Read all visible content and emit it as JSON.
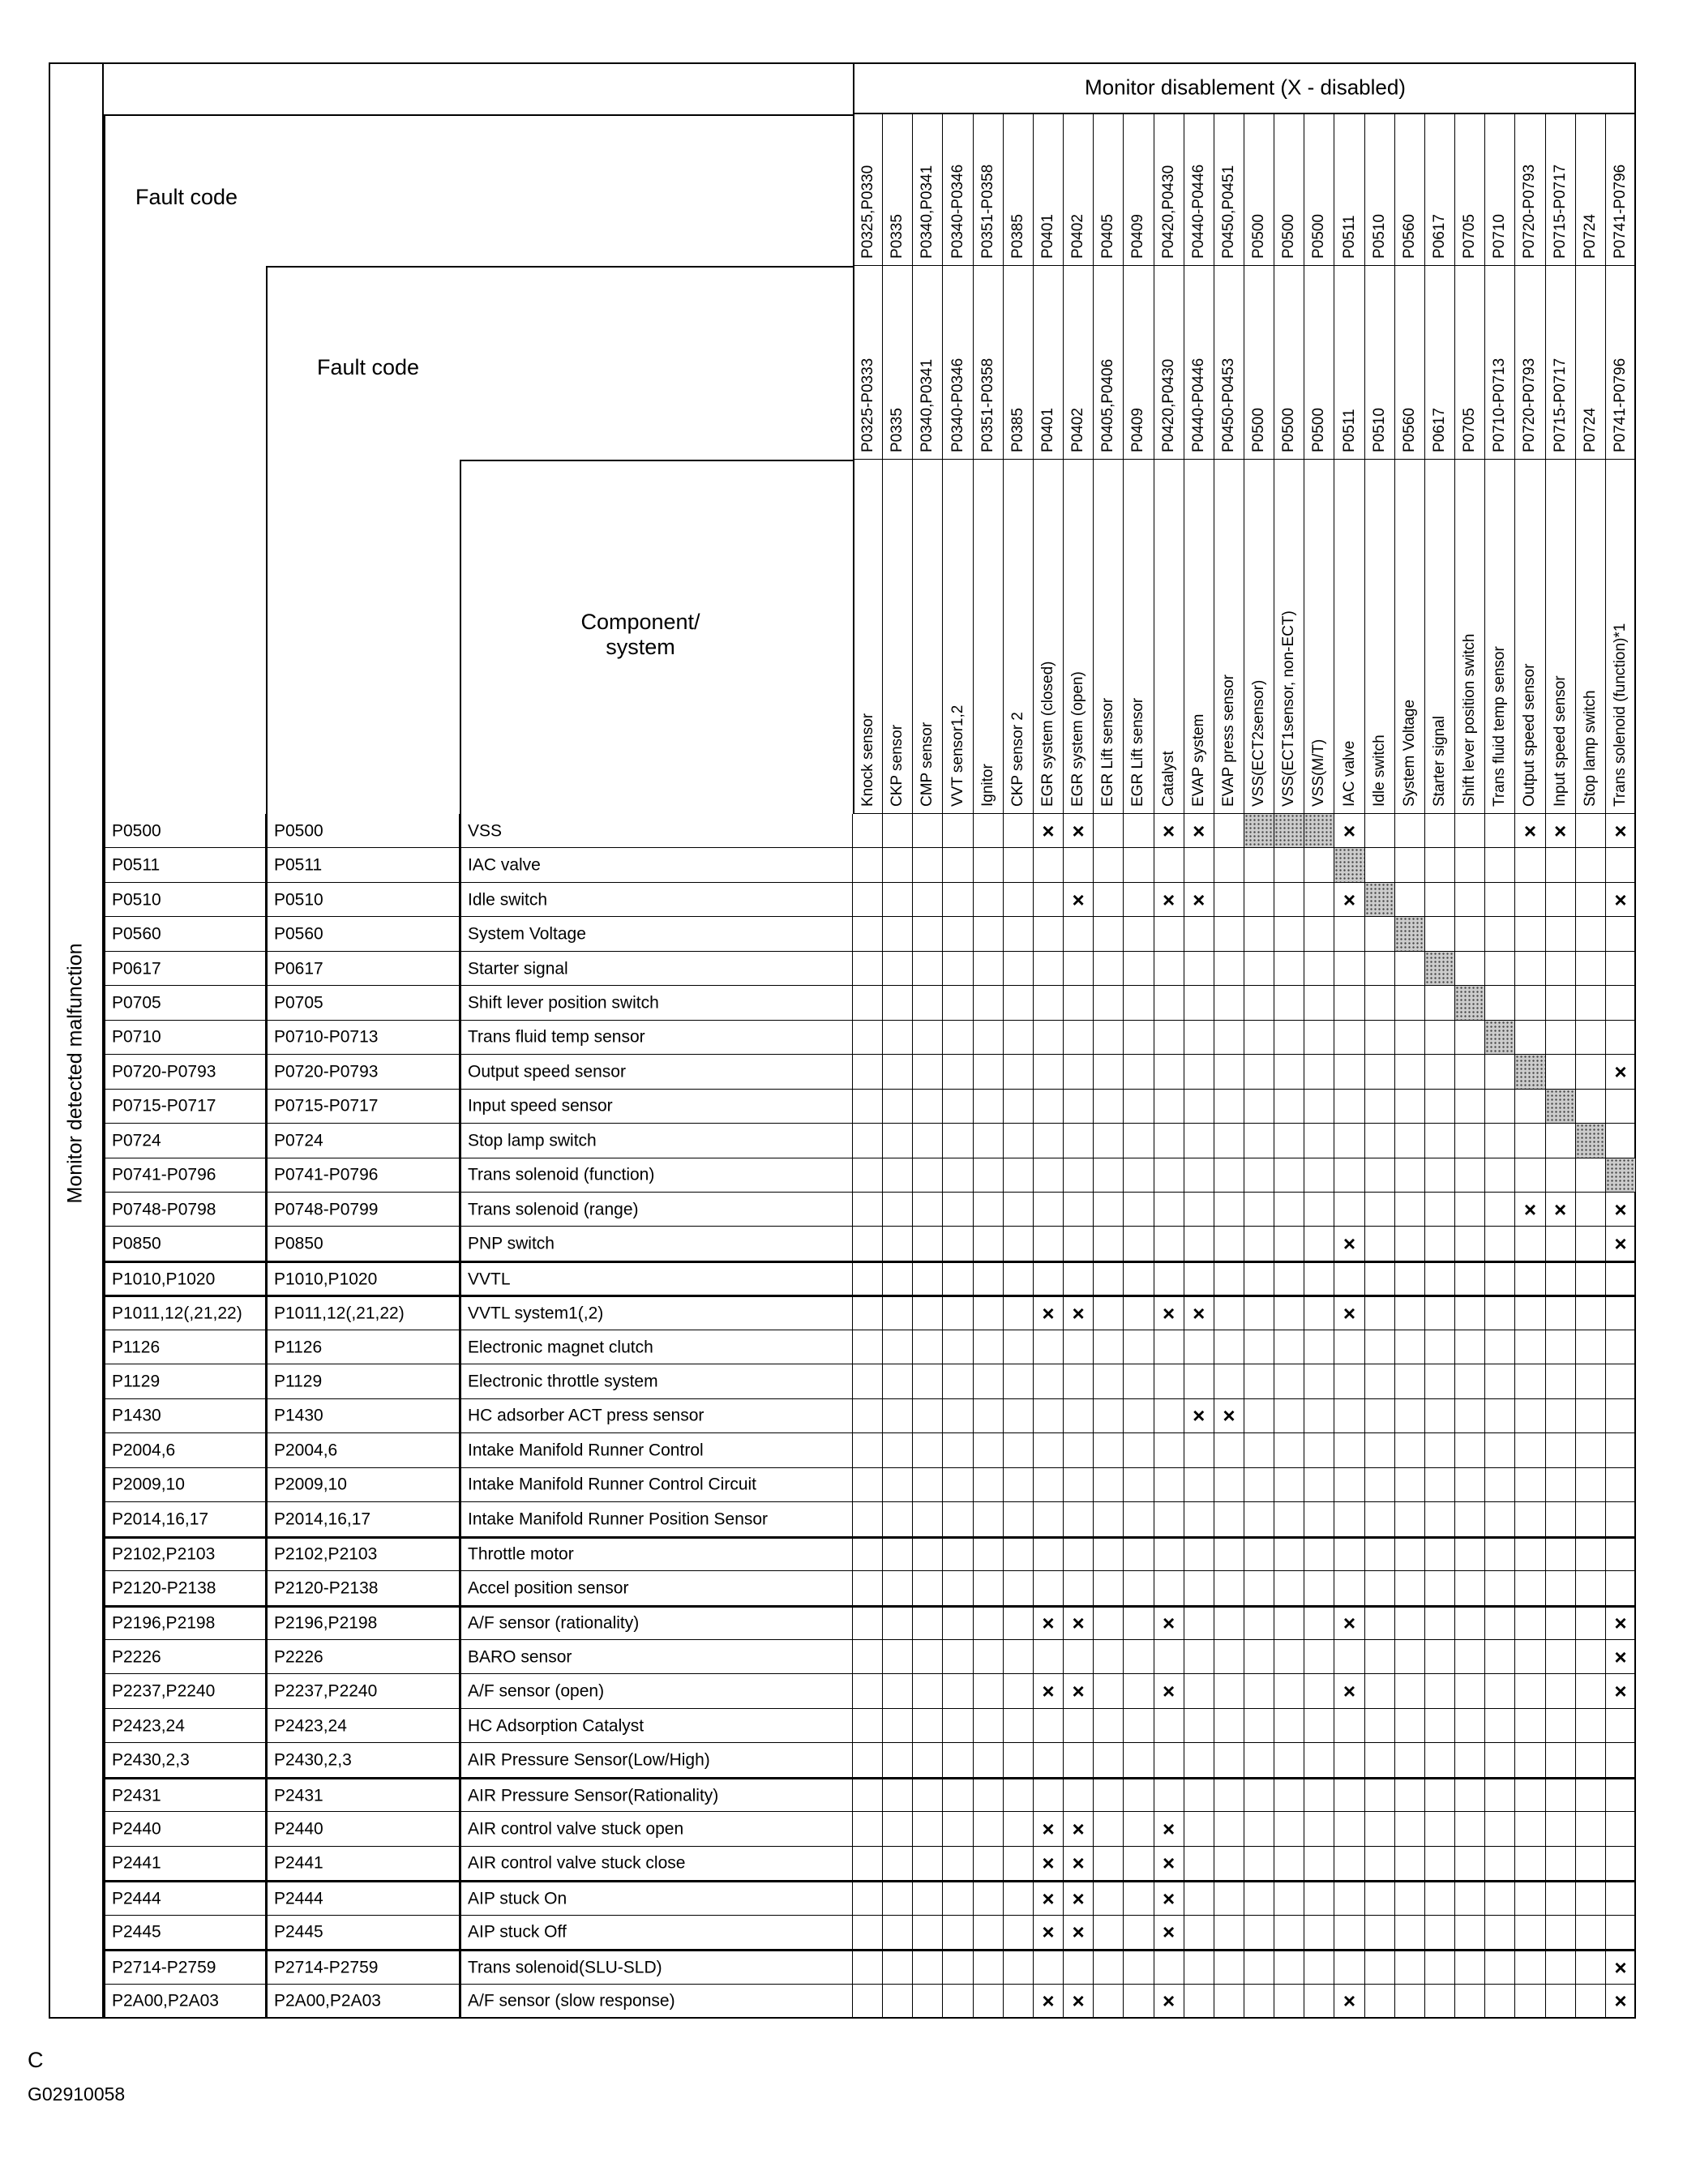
{
  "header": {
    "monitor_disablement": "Monitor disablement (X - disabled)",
    "fault_code_1": "Fault code",
    "fault_code_2": "Fault code",
    "component_system": "Component/\nsystem",
    "row_axis_label": "Monitor detected malfunction"
  },
  "columns": [
    {
      "code1": "P0325,P0330",
      "code2": "P0325-P0333",
      "component": "Knock sensor"
    },
    {
      "code1": "P0335",
      "code2": "P0335",
      "component": "CKP sensor"
    },
    {
      "code1": "P0340,P0341",
      "code2": "P0340,P0341",
      "component": "CMP sensor"
    },
    {
      "code1": "P0340-P0346",
      "code2": "P0340-P0346",
      "component": "VVT sensor1,2"
    },
    {
      "code1": "P0351-P0358",
      "code2": "P0351-P0358",
      "component": "Ignitor"
    },
    {
      "code1": "P0385",
      "code2": "P0385",
      "component": "CKP sensor 2"
    },
    {
      "code1": "P0401",
      "code2": "P0401",
      "component": "EGR system (closed)"
    },
    {
      "code1": "P0402",
      "code2": "P0402",
      "component": "EGR system (open)"
    },
    {
      "code1": "P0405",
      "code2": "P0405,P0406",
      "component": "EGR Lift sensor"
    },
    {
      "code1": "P0409",
      "code2": "P0409",
      "component": "EGR Lift sensor"
    },
    {
      "code1": "P0420,P0430",
      "code2": "P0420,P0430",
      "component": "Catalyst"
    },
    {
      "code1": "P0440-P0446",
      "code2": "P0440-P0446",
      "component": "EVAP system"
    },
    {
      "code1": "P0450,P0451",
      "code2": "P0450-P0453",
      "component": "EVAP press sensor"
    },
    {
      "code1": "P0500",
      "code2": "P0500",
      "component": "VSS(ECT2sensor)"
    },
    {
      "code1": "P0500",
      "code2": "P0500",
      "component": "VSS(ECT1sensor, non-ECT)"
    },
    {
      "code1": "P0500",
      "code2": "P0500",
      "component": "VSS(M/T)"
    },
    {
      "code1": "P0511",
      "code2": "P0511",
      "component": "IAC valve"
    },
    {
      "code1": "P0510",
      "code2": "P0510",
      "component": "Idle switch"
    },
    {
      "code1": "P0560",
      "code2": "P0560",
      "component": "System Voltage"
    },
    {
      "code1": "P0617",
      "code2": "P0617",
      "component": "Starter signal"
    },
    {
      "code1": "P0705",
      "code2": "P0705",
      "component": "Shift lever position switch"
    },
    {
      "code1": "P0710",
      "code2": "P0710-P0713",
      "component": "Trans fluid temp sensor"
    },
    {
      "code1": "P0720-P0793",
      "code2": "P0720-P0793",
      "component": "Output speed sensor"
    },
    {
      "code1": "P0715-P0717",
      "code2": "P0715-P0717",
      "component": "Input speed sensor"
    },
    {
      "code1": "P0724",
      "code2": "P0724",
      "component": "Stop lamp switch"
    },
    {
      "code1": "P0741-P0796",
      "code2": "P0741-P0796",
      "component": "Trans solenoid (function)*1"
    }
  ],
  "mark_symbol": "×",
  "rows": [
    {
      "code1": "P0500",
      "code2": "P0500",
      "component": "VSS",
      "x": [
        7,
        8,
        11,
        12,
        17,
        23,
        24,
        26
      ],
      "shaded": [
        14,
        15,
        16
      ]
    },
    {
      "code1": "P0511",
      "code2": "P0511",
      "component": "IAC valve",
      "x": [],
      "shaded": [
        17
      ]
    },
    {
      "code1": "P0510",
      "code2": "P0510",
      "component": "Idle switch",
      "x": [
        8,
        11,
        12,
        17,
        26
      ],
      "shaded": [
        18
      ]
    },
    {
      "code1": "P0560",
      "code2": "P0560",
      "component": "System Voltage",
      "x": [],
      "shaded": [
        19
      ]
    },
    {
      "code1": "P0617",
      "code2": "P0617",
      "component": "Starter signal",
      "x": [],
      "shaded": [
        20
      ]
    },
    {
      "code1": "P0705",
      "code2": "P0705",
      "component": "Shift lever position switch",
      "x": [],
      "shaded": [
        21
      ]
    },
    {
      "code1": "P0710",
      "code2": "P0710-P0713",
      "component": "Trans fluid temp sensor",
      "x": [],
      "shaded": [
        22
      ]
    },
    {
      "code1": "P0720-P0793",
      "code2": "P0720-P0793",
      "component": "Output speed sensor",
      "x": [
        26
      ],
      "shaded": [
        23
      ]
    },
    {
      "code1": "P0715-P0717",
      "code2": "P0715-P0717",
      "component": "Input speed sensor",
      "x": [],
      "shaded": [
        24
      ]
    },
    {
      "code1": "P0724",
      "code2": "P0724",
      "component": "Stop lamp switch",
      "x": [],
      "shaded": [
        25
      ]
    },
    {
      "code1": "P0741-P0796",
      "code2": "P0741-P0796",
      "component": "Trans solenoid (function)",
      "x": [],
      "shaded": [
        26
      ]
    },
    {
      "code1": "P0748-P0798",
      "code2": "P0748-P0799",
      "component": "Trans solenoid (range)",
      "x": [
        23,
        24,
        26
      ],
      "shaded": []
    },
    {
      "code1": "P0850",
      "code2": "P0850",
      "component": "PNP switch",
      "x": [
        17,
        26
      ],
      "shaded": []
    },
    {
      "code1": "P1010,P1020",
      "code2": "P1010,P1020",
      "component": "VVTL",
      "x": [],
      "shaded": []
    },
    {
      "code1": "P1011,12(,21,22)",
      "code2": "P1011,12(,21,22)",
      "component": "VVTL system1(,2)",
      "x": [
        7,
        8,
        11,
        12,
        17
      ],
      "shaded": []
    },
    {
      "code1": "P1126",
      "code2": "P1126",
      "component": "Electronic magnet clutch",
      "x": [],
      "shaded": []
    },
    {
      "code1": "P1129",
      "code2": "P1129",
      "component": "Electronic throttle system",
      "x": [],
      "shaded": []
    },
    {
      "code1": "P1430",
      "code2": "P1430",
      "component": "HC adsorber ACT press sensor",
      "x": [
        12,
        13
      ],
      "shaded": []
    },
    {
      "code1": "P2004,6",
      "code2": "P2004,6",
      "component": "Intake Manifold Runner Control",
      "x": [],
      "shaded": []
    },
    {
      "code1": "P2009,10",
      "code2": "P2009,10",
      "component": "Intake Manifold Runner Control Circuit",
      "x": [],
      "shaded": []
    },
    {
      "code1": "P2014,16,17",
      "code2": "P2014,16,17",
      "component": "Intake Manifold Runner Position Sensor",
      "x": [],
      "shaded": []
    },
    {
      "code1": "P2102,P2103",
      "code2": "P2102,P2103",
      "component": "Throttle motor",
      "x": [],
      "shaded": []
    },
    {
      "code1": "P2120-P2138",
      "code2": "P2120-P2138",
      "component": "Accel position sensor",
      "x": [],
      "shaded": []
    },
    {
      "code1": "P2196,P2198",
      "code2": "P2196,P2198",
      "component": "A/F sensor (rationality)",
      "x": [
        7,
        8,
        11,
        17,
        26
      ],
      "shaded": []
    },
    {
      "code1": "P2226",
      "code2": "P2226",
      "component": "BARO sensor",
      "x": [
        26
      ],
      "shaded": []
    },
    {
      "code1": "P2237,P2240",
      "code2": "P2237,P2240",
      "component": "A/F sensor (open)",
      "x": [
        7,
        8,
        11,
        17,
        26
      ],
      "shaded": []
    },
    {
      "code1": "P2423,24",
      "code2": "P2423,24",
      "component": "HC Adsorption Catalyst",
      "x": [],
      "shaded": []
    },
    {
      "code1": "P2430,2,3",
      "code2": "P2430,2,3",
      "component": "AIR Pressure Sensor(Low/High)",
      "x": [],
      "shaded": []
    },
    {
      "code1": "P2431",
      "code2": "P2431",
      "component": "AIR Pressure Sensor(Rationality)",
      "x": [],
      "shaded": []
    },
    {
      "code1": "P2440",
      "code2": "P2440",
      "component": "AIR control valve stuck open",
      "x": [
        7,
        8,
        11
      ],
      "shaded": []
    },
    {
      "code1": "P2441",
      "code2": "P2441",
      "component": "AIR control valve stuck close",
      "x": [
        7,
        8,
        11
      ],
      "shaded": []
    },
    {
      "code1": "P2444",
      "code2": "P2444",
      "component": "AIP stuck On",
      "x": [
        7,
        8,
        11
      ],
      "shaded": []
    },
    {
      "code1": "P2445",
      "code2": "P2445",
      "component": "AIP stuck Off",
      "x": [
        7,
        8,
        11
      ],
      "shaded": []
    },
    {
      "code1": "P2714-P2759",
      "code2": "P2714-P2759",
      "component": "Trans solenoid(SLU-SLD)",
      "x": [
        26
      ],
      "shaded": []
    },
    {
      "code1": "P2A00,P2A03",
      "code2": "P2A00,P2A03",
      "component": "A/F sensor (slow response)",
      "x": [
        7,
        8,
        11,
        17,
        26
      ],
      "shaded": []
    }
  ],
  "footer": {
    "letter": "C",
    "figure_id": "G02910058"
  }
}
